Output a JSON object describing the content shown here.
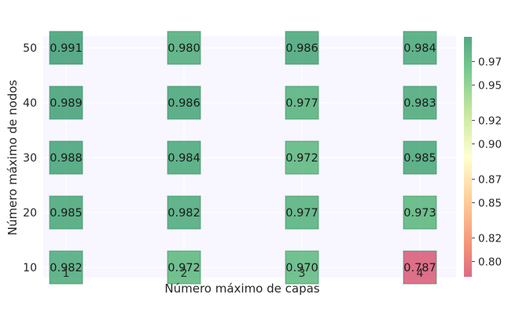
{
  "chart_data": {
    "type": "heatmap",
    "xlabel": "Número máximo de capas",
    "ylabel": "Número máximo de nodos",
    "x_categories": [
      "1",
      "2",
      "3",
      "4"
    ],
    "y_categories": [
      "10",
      "20",
      "30",
      "40",
      "50"
    ],
    "cells": [
      {
        "x": "1",
        "y": "50",
        "value": 0.991,
        "label": "0.991"
      },
      {
        "x": "2",
        "y": "50",
        "value": 0.98,
        "label": "0.980"
      },
      {
        "x": "3",
        "y": "50",
        "value": 0.986,
        "label": "0.986"
      },
      {
        "x": "4",
        "y": "50",
        "value": 0.984,
        "label": "0.984"
      },
      {
        "x": "1",
        "y": "40",
        "value": 0.989,
        "label": "0.989"
      },
      {
        "x": "2",
        "y": "40",
        "value": 0.986,
        "label": "0.986"
      },
      {
        "x": "3",
        "y": "40",
        "value": 0.977,
        "label": "0.977"
      },
      {
        "x": "4",
        "y": "40",
        "value": 0.983,
        "label": "0.983"
      },
      {
        "x": "1",
        "y": "30",
        "value": 0.988,
        "label": "0.988"
      },
      {
        "x": "2",
        "y": "30",
        "value": 0.984,
        "label": "0.984"
      },
      {
        "x": "3",
        "y": "30",
        "value": 0.972,
        "label": "0.972"
      },
      {
        "x": "4",
        "y": "30",
        "value": 0.985,
        "label": "0.985"
      },
      {
        "x": "1",
        "y": "20",
        "value": 0.985,
        "label": "0.985"
      },
      {
        "x": "2",
        "y": "20",
        "value": 0.982,
        "label": "0.982"
      },
      {
        "x": "3",
        "y": "20",
        "value": 0.977,
        "label": "0.977"
      },
      {
        "x": "4",
        "y": "20",
        "value": 0.973,
        "label": "0.973"
      },
      {
        "x": "1",
        "y": "10",
        "value": 0.982,
        "label": "0.982"
      },
      {
        "x": "2",
        "y": "10",
        "value": 0.972,
        "label": "0.972"
      },
      {
        "x": "3",
        "y": "10",
        "value": 0.97,
        "label": "0.970"
      },
      {
        "x": "4",
        "y": "10",
        "value": 0.787,
        "label": "0.787"
      }
    ],
    "colorbar": {
      "colormap": "RdYlGn",
      "vmin": 0.787,
      "vmax": 0.991,
      "ticks": [
        "0.80",
        "0.82",
        "0.85",
        "0.87",
        "0.90",
        "0.92",
        "0.95",
        "0.97"
      ]
    },
    "grid": true
  },
  "colors": {
    "plot_background": "#f8f6ff",
    "grid": "#ffffff",
    "cell_border": "#2e8b57"
  }
}
